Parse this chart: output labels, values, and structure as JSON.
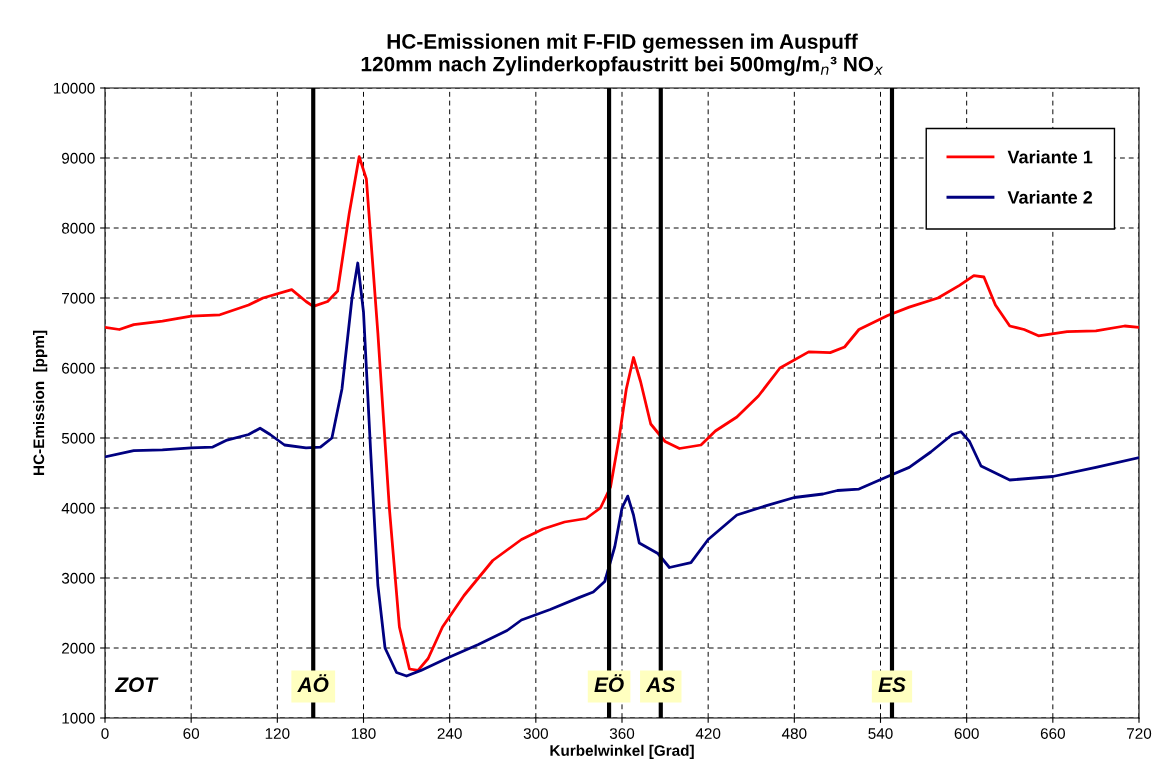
{
  "chart_data": {
    "type": "line",
    "title": "HC-Emissionen mit F-FID gemessen im Auspuff\n120mm nach Zylinderkopfaustritt bei 500mg/m$_{n}$³ NO$_{x}$",
    "xlabel": "Kurbelwinkel [Grad]",
    "ylabel": "HC-Emission  [ppm]",
    "xlim": [
      0,
      720
    ],
    "xticks": [
      0,
      60,
      120,
      180,
      240,
      300,
      360,
      420,
      480,
      540,
      600,
      660,
      720
    ],
    "ylim": [
      1000,
      10000
    ],
    "yticks": [
      1000,
      2000,
      3000,
      4000,
      5000,
      6000,
      7000,
      8000,
      9000,
      10000
    ],
    "grid": true,
    "legend": "top right",
    "series": [
      {
        "name": "Variante 1",
        "color": "#ff0000",
        "x": [
          0,
          10,
          20,
          40,
          60,
          80,
          100,
          110,
          130,
          140,
          145,
          155,
          162,
          170,
          177,
          182,
          190,
          198,
          205,
          212,
          218,
          225,
          235,
          250,
          270,
          290,
          305,
          320,
          335,
          345,
          352,
          358,
          363,
          368,
          373,
          380,
          390,
          400,
          415,
          425,
          440,
          455,
          470,
          490,
          505,
          515,
          525,
          545,
          560,
          580,
          595,
          605,
          612,
          620,
          630,
          640,
          650,
          670,
          690,
          710,
          720
        ],
        "values": [
          6580,
          6550,
          6620,
          6670,
          6740,
          6760,
          6900,
          7000,
          7120,
          6950,
          6880,
          6950,
          7100,
          8200,
          9020,
          8700,
          6500,
          4000,
          2300,
          1700,
          1680,
          1850,
          2300,
          2750,
          3250,
          3550,
          3700,
          3800,
          3850,
          4000,
          4300,
          5000,
          5700,
          6150,
          5800,
          5200,
          4950,
          4850,
          4900,
          5100,
          5300,
          5600,
          6000,
          6230,
          6220,
          6300,
          6550,
          6750,
          6870,
          7000,
          7180,
          7320,
          7300,
          6900,
          6600,
          6550,
          6460,
          6520,
          6530,
          6600,
          6580
        ]
      },
      {
        "name": "Variante 2",
        "color": "#000080",
        "x": [
          0,
          20,
          40,
          60,
          75,
          85,
          100,
          108,
          115,
          125,
          140,
          150,
          158,
          165,
          172,
          176,
          180,
          185,
          190,
          195,
          203,
          210,
          220,
          240,
          260,
          280,
          290,
          310,
          330,
          340,
          348,
          355,
          360,
          364,
          368,
          372,
          385,
          393,
          408,
          420,
          440,
          460,
          480,
          500,
          510,
          525,
          545,
          560,
          575,
          590,
          596,
          602,
          610,
          630,
          660,
          690,
          720
        ],
        "values": [
          4730,
          4820,
          4830,
          4860,
          4870,
          4970,
          5050,
          5140,
          5050,
          4900,
          4860,
          4870,
          5000,
          5700,
          7000,
          7500,
          6800,
          4800,
          2900,
          2000,
          1650,
          1600,
          1680,
          1870,
          2050,
          2250,
          2400,
          2550,
          2720,
          2800,
          2950,
          3450,
          4000,
          4170,
          3900,
          3500,
          3350,
          3150,
          3220,
          3550,
          3900,
          4030,
          4150,
          4200,
          4250,
          4270,
          4450,
          4580,
          4800,
          5050,
          5090,
          4950,
          4600,
          4400,
          4450,
          4580,
          4720
        ]
      }
    ],
    "ref_lines": [
      {
        "axis": "x",
        "value": 145,
        "label": "AÖ",
        "color": "#000000"
      },
      {
        "axis": "x",
        "value": 351,
        "label": "EÖ",
        "color": "#000000"
      },
      {
        "axis": "x",
        "value": 387,
        "label": "AS",
        "color": "#000000"
      },
      {
        "axis": "x",
        "value": 548,
        "label": "ES",
        "color": "#000000"
      }
    ],
    "annotations": [
      "ZOT"
    ]
  }
}
